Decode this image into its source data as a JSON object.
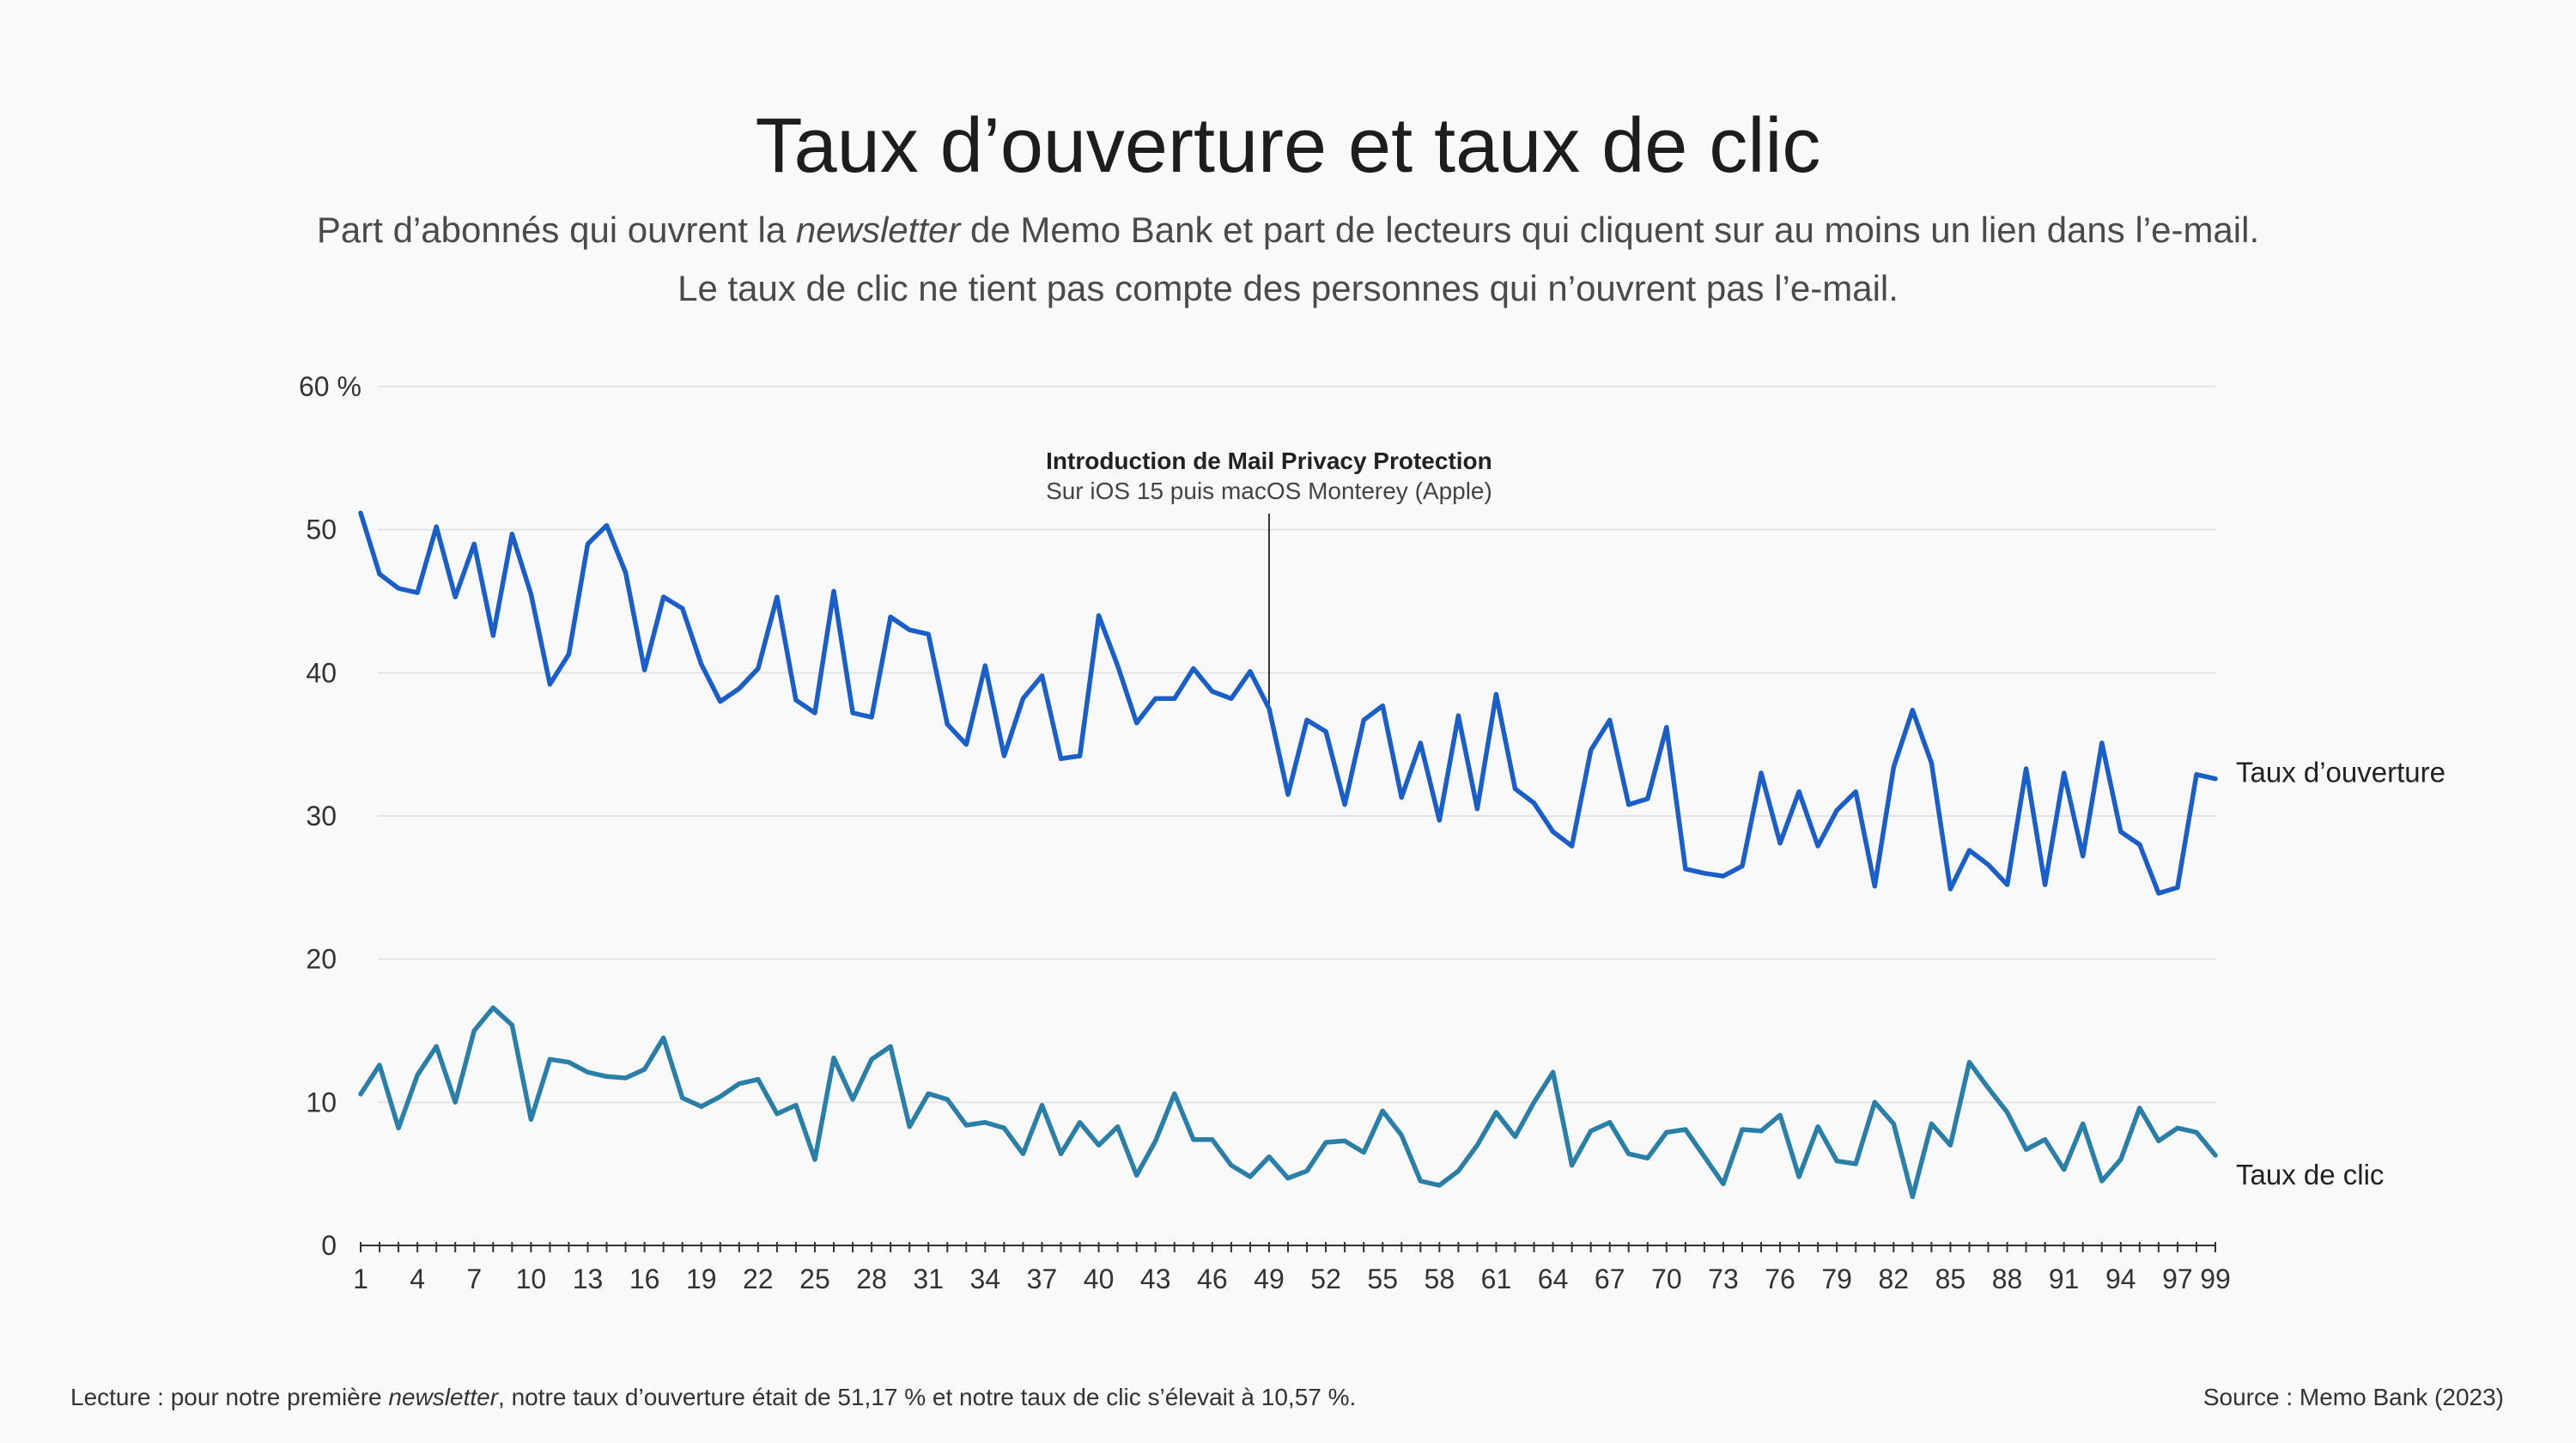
{
  "title": "Taux d’ouverture et taux de clic",
  "subtitle": {
    "line1_pre": "Part d’abonnés qui ouvrent la ",
    "line1_em": "newsletter",
    "line1_post": " de Memo Bank et part de lecteurs qui cliquent sur au moins un lien dans l’e-mail.",
    "line2": "Le taux de clic ne tient pas compte des personnes qui n’ouvrent pas l’e-mail."
  },
  "footer": {
    "reading_pre": "Lecture : pour notre première ",
    "reading_em": "newsletter",
    "reading_post": ", notre taux d’ouverture était de 51,17 % et notre taux de clic s’élevait à 10,57 %.",
    "source": "Source : Memo Bank (2023)"
  },
  "colors": {
    "open_rate": "#1a5fc9",
    "click_rate": "#2a7fa8",
    "annotation": "#333333",
    "grid": "#e4e4e4"
  },
  "chart_data": {
    "type": "line",
    "x": [
      1,
      2,
      3,
      4,
      5,
      6,
      7,
      8,
      9,
      10,
      11,
      12,
      13,
      14,
      15,
      16,
      17,
      18,
      19,
      20,
      21,
      22,
      23,
      24,
      25,
      26,
      27,
      28,
      29,
      30,
      31,
      32,
      33,
      34,
      35,
      36,
      37,
      38,
      39,
      40,
      41,
      42,
      43,
      44,
      45,
      46,
      47,
      48,
      49,
      50,
      51,
      52,
      53,
      54,
      55,
      56,
      57,
      58,
      59,
      60,
      61,
      62,
      63,
      64,
      65,
      66,
      67,
      68,
      69,
      70,
      71,
      72,
      73,
      74,
      75,
      76,
      77,
      78,
      79,
      80,
      81,
      82,
      83,
      84,
      85,
      86,
      87,
      88,
      89,
      90,
      91,
      92,
      93,
      94,
      95,
      96,
      97,
      98,
      99
    ],
    "x_tick_labels": [
      "1",
      "4",
      "7",
      "10",
      "13",
      "16",
      "19",
      "22",
      "25",
      "28",
      "31",
      "34",
      "37",
      "40",
      "43",
      "46",
      "49",
      "52",
      "55",
      "58",
      "61",
      "64",
      "67",
      "70",
      "73",
      "76",
      "79",
      "82",
      "85",
      "88",
      "91",
      "94",
      "97",
      "99"
    ],
    "y_ticks": [
      0,
      10,
      20,
      30,
      40,
      50,
      60
    ],
    "y_unit": "%",
    "ylim": [
      0,
      60
    ],
    "series": [
      {
        "name": "Taux d’ouverture",
        "values": [
          51.17,
          46.9,
          45.9,
          45.6,
          50.2,
          45.3,
          49.0,
          42.6,
          49.7,
          45.5,
          39.2,
          41.3,
          49.0,
          50.3,
          47.0,
          40.2,
          45.3,
          44.5,
          40.6,
          38.0,
          38.9,
          40.3,
          45.3,
          38.1,
          37.2,
          45.7,
          37.2,
          36.9,
          43.9,
          43.0,
          42.7,
          36.4,
          35.0,
          40.5,
          34.2,
          38.2,
          39.8,
          34.0,
          34.2,
          44.0,
          40.5,
          36.5,
          38.2,
          38.2,
          40.3,
          38.7,
          38.2,
          40.1,
          37.5,
          31.5,
          36.7,
          35.9,
          30.8,
          36.7,
          37.7,
          31.3,
          35.1,
          29.7,
          37.0,
          30.5,
          38.5,
          31.9,
          30.9,
          28.9,
          27.9,
          34.6,
          36.7,
          30.8,
          31.2,
          36.2,
          26.3,
          26.0,
          25.8,
          26.5,
          33.0,
          28.1,
          31.7,
          27.9,
          30.4,
          31.7,
          25.1,
          33.4,
          37.4,
          33.7,
          24.9,
          27.6,
          26.6,
          25.2,
          33.3,
          25.2,
          33.0,
          27.2,
          35.1,
          28.9,
          28.0,
          24.6,
          25.0,
          32.9,
          32.6
        ]
      },
      {
        "name": "Taux de clic",
        "values": [
          10.57,
          12.6,
          8.2,
          11.9,
          13.9,
          10.0,
          15.0,
          16.6,
          15.4,
          8.8,
          13.0,
          12.8,
          12.1,
          11.8,
          11.7,
          12.3,
          14.5,
          10.3,
          9.7,
          10.4,
          11.3,
          11.6,
          9.2,
          9.8,
          6.0,
          13.1,
          10.2,
          13.0,
          13.9,
          8.3,
          10.6,
          10.2,
          8.4,
          8.6,
          8.2,
          6.4,
          9.8,
          6.4,
          8.6,
          7.0,
          8.3,
          4.9,
          7.3,
          10.6,
          7.4,
          7.4,
          5.6,
          4.8,
          6.2,
          4.7,
          5.2,
          7.2,
          7.3,
          6.5,
          9.4,
          7.7,
          4.5,
          4.2,
          5.2,
          7.0,
          9.3,
          7.6,
          10.0,
          12.1,
          5.6,
          8.0,
          8.6,
          6.4,
          6.1,
          7.9,
          8.1,
          6.2,
          4.3,
          8.1,
          8.0,
          9.1,
          4.8,
          8.3,
          5.9,
          5.7,
          10.0,
          8.5,
          3.4,
          8.5,
          7.0,
          12.8,
          11.0,
          9.3,
          6.7,
          7.4,
          5.3,
          8.5,
          4.5,
          6.0,
          9.6,
          7.3,
          8.2,
          7.9,
          6.3
        ]
      }
    ],
    "annotation": {
      "x": 49,
      "title": "Introduction de Mail Privacy Protection",
      "subtitle": "Sur iOS 15 puis macOS Monterey (Apple)"
    },
    "grid": true,
    "legend": "direct-labels-right"
  }
}
